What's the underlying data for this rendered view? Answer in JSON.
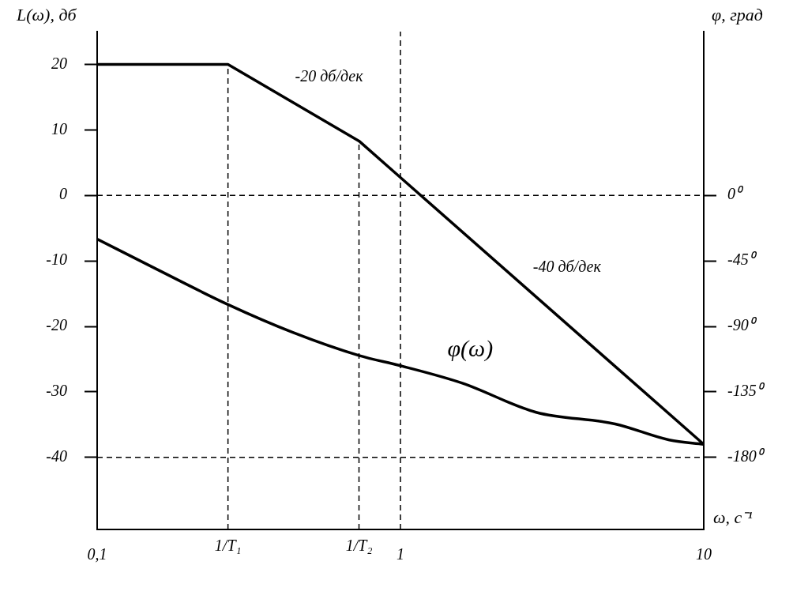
{
  "chart_data": {
    "type": "line",
    "xlabel": "ω, с⁻¹",
    "ylabel": "L(ω), дб",
    "y2label": "φ, град",
    "log": "x",
    "grid": false,
    "legend": false,
    "marker": "none",
    "line_style": "solid",
    "xlim": [
      0.1,
      10
    ],
    "xticks": [
      {
        "value": 0.1,
        "label": "0,1"
      },
      {
        "value": 1,
        "label": "1"
      },
      {
        "value": 10,
        "label": "10"
      }
    ],
    "ylim": [
      -51,
      25
    ],
    "yticks": [
      20,
      10,
      0,
      -10,
      -20,
      -30,
      -40
    ],
    "y2lim": [
      -229.5,
      112.5
    ],
    "y2ticks": [
      {
        "value": 0,
        "label": "0⁰"
      },
      {
        "value": -45,
        "label": "-45⁰"
      },
      {
        "value": -90,
        "label": "-90⁰"
      },
      {
        "value": -135,
        "label": "-135⁰"
      },
      {
        "value": -180,
        "label": "-180⁰"
      }
    ],
    "series": [
      {
        "color": "#000000",
        "x": [
          0.1,
          0.27,
          0.73,
          10
        ],
        "values": [
          20,
          20,
          8.3,
          -38
        ]
      },
      {
        "name": "φ(ω)",
        "axis": "y2",
        "color": "#000000",
        "x": [
          0.1,
          0.158,
          0.27,
          0.44,
          0.73,
          1,
          1.6,
          2.8,
          5.1,
          7.7,
          10
        ],
        "values": [
          -30,
          -51,
          -75,
          -94,
          -110,
          -117,
          -129,
          -149,
          -157,
          -168,
          -171
        ]
      }
    ],
    "ref_lines": [
      {
        "axis": "y",
        "value": 0,
        "color": "#000000",
        "line_style": "dashed"
      },
      {
        "axis": "y",
        "value": -40,
        "color": "#000000",
        "line_style": "dashed"
      },
      {
        "axis": "x",
        "value": 0.27,
        "label": "1/T₁",
        "color": "#000000",
        "line_style": "dashed"
      },
      {
        "axis": "x",
        "value": 0.73,
        "label": "1/T₂",
        "color": "#000000",
        "line_style": "dashed"
      },
      {
        "axis": "x",
        "value": 1,
        "color": "#000000",
        "line_style": "dashed"
      }
    ],
    "annotations": [
      "-20 дб/дек",
      "-40 дб/дек"
    ]
  }
}
